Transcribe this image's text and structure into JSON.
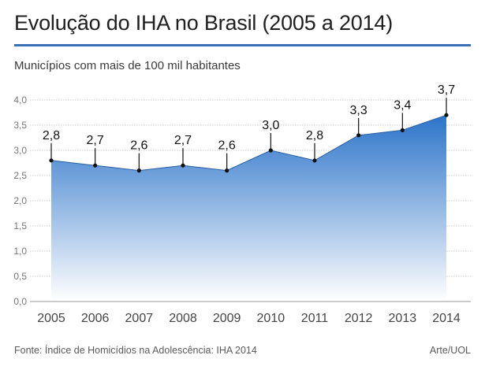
{
  "header": {
    "title": "Evolução do IHA no Brasil (2005 a 2014)",
    "subtitle": "Municípios com mais de 100 mil habitantes"
  },
  "footer": {
    "source": "Fonte: Índice de Homicídios na Adolescência: IHA 2014",
    "credit": "Arte/UOL"
  },
  "colors": {
    "accent": "#3a6fb5",
    "area_top": "#2c74c9",
    "area_bottom": "#ffffff",
    "line": "#2a5f9e",
    "grid": "#cfcfcf",
    "text": "#222222"
  },
  "chart_data": {
    "type": "area",
    "x": [
      "2005",
      "2006",
      "2007",
      "2008",
      "2009",
      "2010",
      "2011",
      "2012",
      "2013",
      "2014"
    ],
    "series": [
      {
        "values": [
          2.8,
          2.7,
          2.6,
          2.7,
          2.6,
          3.0,
          2.8,
          3.3,
          3.4,
          3.7
        ],
        "labels": [
          "2,8",
          "2,7",
          "2,6",
          "2,7",
          "2,6",
          "3,0",
          "2,8",
          "3,3",
          "3,4",
          "3,7"
        ]
      }
    ],
    "y_ticks": [
      0,
      0.5,
      1,
      1.5,
      2,
      2.5,
      3,
      3.5,
      4
    ],
    "y_tick_labels": [
      "0,0",
      "0,5",
      "1,0",
      "1,5",
      "2,0",
      "2,5",
      "3,0",
      "3,5",
      "4,0"
    ],
    "ylim": [
      0,
      4
    ],
    "grid": true
  }
}
